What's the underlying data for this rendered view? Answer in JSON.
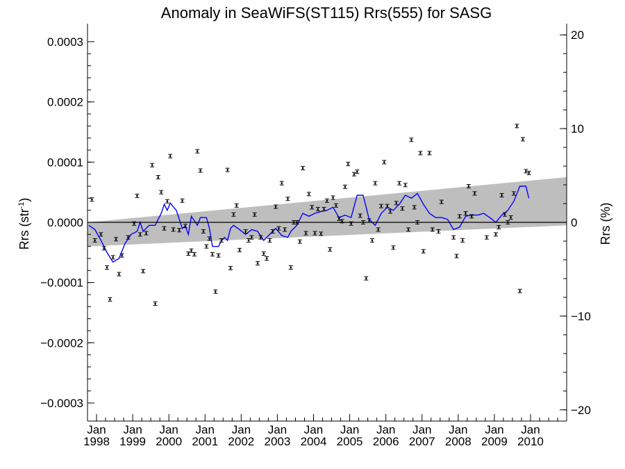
{
  "chart_data": {
    "type": "scatter",
    "title": "Anomaly in SeaWiFS(ST115) Rrs(555) for SASG",
    "ylabel_left": "Rrs (str",
    "ylabel_left_sup": "-1",
    "ylabel_left_close": ")",
    "ylabel_right": "Rrs (%)",
    "x_range": [
      "1997-10-01",
      "2010-12-31"
    ],
    "ylim_left": [
      -0.00033,
      0.00033
    ],
    "ylim_right": [
      -21.2,
      21.2
    ],
    "yticks_left": [
      {
        "v": 0.0003,
        "label": "0.0003"
      },
      {
        "v": 0.0002,
        "label": "0.0002"
      },
      {
        "v": 0.0001,
        "label": "0.0001"
      },
      {
        "v": 0.0,
        "label": "0.0000"
      },
      {
        "v": -0.0001,
        "label": "−0.0001"
      },
      {
        "v": -0.0002,
        "label": "−0.0002"
      },
      {
        "v": -0.0003,
        "label": "−0.0003"
      }
    ],
    "yticks_right": [
      {
        "v": 20,
        "label": "20"
      },
      {
        "v": 10,
        "label": "10"
      },
      {
        "v": 0,
        "label": "0"
      },
      {
        "v": -10,
        "label": "−10"
      },
      {
        "v": -20,
        "label": "−20"
      }
    ],
    "xticks": [
      {
        "year": 1998,
        "month": "Jan",
        "label": "1998"
      },
      {
        "year": 1999,
        "month": "Jan",
        "label": "1999"
      },
      {
        "year": 2000,
        "month": "Jan",
        "label": "2000"
      },
      {
        "year": 2001,
        "month": "Jan",
        "label": "2001"
      },
      {
        "year": 2002,
        "month": "Jan",
        "label": "2002"
      },
      {
        "year": 2003,
        "month": "Jan",
        "label": "2003"
      },
      {
        "year": 2004,
        "month": "Jan",
        "label": "2004"
      },
      {
        "year": 2005,
        "month": "Jan",
        "label": "2005"
      },
      {
        "year": 2006,
        "month": "Jan",
        "label": "2006"
      },
      {
        "year": 2007,
        "month": "Jan",
        "label": "2007"
      },
      {
        "year": 2008,
        "month": "Jan",
        "label": "2008"
      },
      {
        "year": 2009,
        "month": "Jan",
        "label": "2009"
      },
      {
        "year": 2010,
        "month": "Jan",
        "label": "2010"
      }
    ],
    "zero_line": 0.0,
    "trend_band": {
      "lower": [
        {
          "x": "1997-10-01",
          "y": -4e-05
        },
        {
          "x": "2010-12-31",
          "y": -5e-06
        }
      ],
      "upper": [
        {
          "x": "1997-10-01",
          "y": 0.0
        },
        {
          "x": "2010-12-31",
          "y": 7.5e-05
        }
      ]
    },
    "colors": {
      "points": "#000000",
      "smooth_line": "#0000ff",
      "band": "#bebebe",
      "zero_line": "#000000"
    },
    "points": [
      {
        "x": "1997-11",
        "y": 3.8e-05
      },
      {
        "x": "1997-12",
        "y": -3e-05
      },
      {
        "x": "1998-02",
        "y": -2e-05
      },
      {
        "x": "1998-03",
        "y": -4.3e-05
      },
      {
        "x": "1998-04",
        "y": -7.5e-05
      },
      {
        "x": "1998-05",
        "y": -0.000128
      },
      {
        "x": "1998-06",
        "y": -5.8e-05
      },
      {
        "x": "1998-07",
        "y": -2.8e-05
      },
      {
        "x": "1998-08",
        "y": -8.6e-05
      },
      {
        "x": "1998-09",
        "y": -5.5e-05
      },
      {
        "x": "1998-11",
        "y": -2.5e-05
      },
      {
        "x": "1999-01",
        "y": -2e-06
      },
      {
        "x": "1999-02",
        "y": 4.4e-05
      },
      {
        "x": "1999-03",
        "y": -2e-05
      },
      {
        "x": "1999-04",
        "y": -8.1e-05
      },
      {
        "x": "1999-05",
        "y": -1.8e-05
      },
      {
        "x": "1999-07",
        "y": 9.5e-05
      },
      {
        "x": "1999-08",
        "y": -0.000135
      },
      {
        "x": "1999-09",
        "y": 7.5e-05
      },
      {
        "x": "1999-10",
        "y": 5e-05
      },
      {
        "x": "1999-11",
        "y": -1e-05
      },
      {
        "x": "1999-12",
        "y": 3.5e-05
      },
      {
        "x": "2000-01",
        "y": 0.00011
      },
      {
        "x": "2000-02",
        "y": -1.2e-05
      },
      {
        "x": "2000-04",
        "y": -1.3e-05
      },
      {
        "x": "2000-05",
        "y": 3.6e-05
      },
      {
        "x": "2000-06",
        "y": -6e-06
      },
      {
        "x": "2000-07",
        "y": -5.2e-05
      },
      {
        "x": "2000-08",
        "y": -4.7e-05
      },
      {
        "x": "2000-09",
        "y": -5.3e-05
      },
      {
        "x": "2000-10",
        "y": 0.000118
      },
      {
        "x": "2000-11",
        "y": 8.6e-05
      },
      {
        "x": "2000-12",
        "y": -1.5e-05
      },
      {
        "x": "2001-01",
        "y": -4e-05
      },
      {
        "x": "2001-02",
        "y": -2.7e-05
      },
      {
        "x": "2001-03",
        "y": -5.3e-05
      },
      {
        "x": "2001-04",
        "y": -0.000115
      },
      {
        "x": "2001-05",
        "y": -5.5e-05
      },
      {
        "x": "2001-06",
        "y": -3e-05
      },
      {
        "x": "2001-08",
        "y": 8.7e-05
      },
      {
        "x": "2001-09",
        "y": -7.6e-05
      },
      {
        "x": "2001-10",
        "y": 1.3e-05
      },
      {
        "x": "2001-11",
        "y": 2.8e-05
      },
      {
        "x": "2001-12",
        "y": -4.6e-05
      },
      {
        "x": "2002-02",
        "y": -1.5e-05
      },
      {
        "x": "2002-03",
        "y": -3e-05
      },
      {
        "x": "2002-04",
        "y": -2.5e-05
      },
      {
        "x": "2002-05",
        "y": 1.3e-05
      },
      {
        "x": "2002-06",
        "y": -6.8e-05
      },
      {
        "x": "2002-07",
        "y": -2.5e-05
      },
      {
        "x": "2002-08",
        "y": -5.2e-05
      },
      {
        "x": "2002-09",
        "y": -6e-05
      },
      {
        "x": "2002-10",
        "y": -3e-05
      },
      {
        "x": "2002-11",
        "y": -1.5e-05
      },
      {
        "x": "2002-12",
        "y": 2.6e-05
      },
      {
        "x": "2003-01",
        "y": -1e-05
      },
      {
        "x": "2003-02",
        "y": 6.5e-05
      },
      {
        "x": "2003-03",
        "y": -1.2e-05
      },
      {
        "x": "2003-04",
        "y": 3.9e-05
      },
      {
        "x": "2003-05",
        "y": -7.5e-05
      },
      {
        "x": "2003-06",
        "y": 0.0
      },
      {
        "x": "2003-07",
        "y": 0.0
      },
      {
        "x": "2003-08",
        "y": -3.2e-05
      },
      {
        "x": "2003-09",
        "y": 9e-05
      },
      {
        "x": "2003-10",
        "y": -1.8e-05
      },
      {
        "x": "2003-11",
        "y": 4.7e-05
      },
      {
        "x": "2003-12",
        "y": 2.5e-05
      },
      {
        "x": "2004-01",
        "y": -1.8e-05
      },
      {
        "x": "2004-02",
        "y": 2.2e-05
      },
      {
        "x": "2004-03",
        "y": -1.9e-05
      },
      {
        "x": "2004-04",
        "y": 2.2e-05
      },
      {
        "x": "2004-05",
        "y": 3.6e-05
      },
      {
        "x": "2004-06",
        "y": -4.5e-05
      },
      {
        "x": "2004-07",
        "y": 4.1e-05
      },
      {
        "x": "2004-08",
        "y": 2.8e-05
      },
      {
        "x": "2004-09",
        "y": 6e-06
      },
      {
        "x": "2004-10",
        "y": 2e-06
      },
      {
        "x": "2004-11",
        "y": 5.9e-05
      },
      {
        "x": "2004-12",
        "y": 9.7e-05
      },
      {
        "x": "2005-01",
        "y": -2e-06
      },
      {
        "x": "2005-02",
        "y": 8e-05
      },
      {
        "x": "2005-03",
        "y": 8.4e-05
      },
      {
        "x": "2005-04",
        "y": 1.1e-05
      },
      {
        "x": "2005-05",
        "y": 0.0
      },
      {
        "x": "2005-06",
        "y": -9.3e-05
      },
      {
        "x": "2005-07",
        "y": 3e-06
      },
      {
        "x": "2005-08",
        "y": -3e-05
      },
      {
        "x": "2005-09",
        "y": 6.5e-05
      },
      {
        "x": "2005-10",
        "y": -1.2e-05
      },
      {
        "x": "2005-11",
        "y": 2.7e-05
      },
      {
        "x": "2005-12",
        "y": 0.0001
      },
      {
        "x": "2006-01",
        "y": 2.7e-05
      },
      {
        "x": "2006-02",
        "y": 1.8e-05
      },
      {
        "x": "2006-03",
        "y": -4.2e-05
      },
      {
        "x": "2006-04",
        "y": 3.2e-05
      },
      {
        "x": "2006-05",
        "y": 6.5e-05
      },
      {
        "x": "2006-06",
        "y": 2.3e-05
      },
      {
        "x": "2006-07",
        "y": 6.2e-05
      },
      {
        "x": "2006-08",
        "y": -1.2e-05
      },
      {
        "x": "2006-09",
        "y": 0.000137
      },
      {
        "x": "2006-10",
        "y": 2.5e-05
      },
      {
        "x": "2006-11",
        "y": 0.0
      },
      {
        "x": "2006-12",
        "y": 0.000115
      },
      {
        "x": "2007-01",
        "y": -4.8e-05
      },
      {
        "x": "2007-03",
        "y": 0.000115
      },
      {
        "x": "2007-04",
        "y": -1.2e-05
      },
      {
        "x": "2007-06",
        "y": -1.5e-05
      },
      {
        "x": "2007-07",
        "y": 3.4e-05
      },
      {
        "x": "2007-11",
        "y": -2.5e-05
      },
      {
        "x": "2007-12",
        "y": -5.6e-05
      },
      {
        "x": "2008-01",
        "y": 1e-05
      },
      {
        "x": "2008-02",
        "y": -3e-05
      },
      {
        "x": "2008-03",
        "y": 1.5e-05
      },
      {
        "x": "2008-04",
        "y": 6e-05
      },
      {
        "x": "2008-05",
        "y": 1e-05
      },
      {
        "x": "2008-06",
        "y": 4.8e-05
      },
      {
        "x": "2008-10",
        "y": -2.5e-05
      },
      {
        "x": "2009-01",
        "y": -2e-05
      },
      {
        "x": "2009-02",
        "y": -8e-06
      },
      {
        "x": "2009-03",
        "y": 4.5e-05
      },
      {
        "x": "2009-04",
        "y": 1.3e-05
      },
      {
        "x": "2009-05",
        "y": 0.0
      },
      {
        "x": "2009-06",
        "y": 8e-06
      },
      {
        "x": "2009-07",
        "y": 4.8e-05
      },
      {
        "x": "2009-08",
        "y": 0.00016
      },
      {
        "x": "2009-09",
        "y": -0.000114
      },
      {
        "x": "2009-10",
        "y": 0.000138
      },
      {
        "x": "2009-11",
        "y": 8.5e-05
      },
      {
        "x": "2009-12",
        "y": 8.2e-05
      }
    ],
    "smooth_line": [
      {
        "x": "1997-10",
        "y": -5e-06
      },
      {
        "x": "1997-12",
        "y": -1.2e-05
      },
      {
        "x": "1998-02",
        "y": -3e-05
      },
      {
        "x": "1998-04",
        "y": -5e-05
      },
      {
        "x": "1998-06",
        "y": -6.6e-05
      },
      {
        "x": "1998-08",
        "y": -6e-05
      },
      {
        "x": "1998-10",
        "y": -3.5e-05
      },
      {
        "x": "1998-12",
        "y": -2e-05
      },
      {
        "x": "1999-02",
        "y": -1.5e-05
      },
      {
        "x": "1999-03",
        "y": 0.0
      },
      {
        "x": "1999-04",
        "y": -1.5e-05
      },
      {
        "x": "1999-06",
        "y": -5e-06
      },
      {
        "x": "1999-08",
        "y": -5e-06
      },
      {
        "x": "1999-10",
        "y": 1.5e-05
      },
      {
        "x": "1999-11",
        "y": 3e-05
      },
      {
        "x": "1999-12",
        "y": 2e-05
      },
      {
        "x": "2000-01",
        "y": 3.2e-05
      },
      {
        "x": "2000-03",
        "y": 2e-05
      },
      {
        "x": "2000-05",
        "y": -1e-05
      },
      {
        "x": "2000-06",
        "y": -6e-06
      },
      {
        "x": "2000-07",
        "y": -2e-05
      },
      {
        "x": "2000-08",
        "y": 1e-05
      },
      {
        "x": "2000-10",
        "y": -5e-06
      },
      {
        "x": "2000-11",
        "y": 8e-06
      },
      {
        "x": "2001-01",
        "y": 8e-06
      },
      {
        "x": "2001-02",
        "y": -1e-05
      },
      {
        "x": "2001-03",
        "y": -4e-05
      },
      {
        "x": "2001-05",
        "y": -4e-05
      },
      {
        "x": "2001-06",
        "y": -3e-05
      },
      {
        "x": "2001-07",
        "y": -2.5e-05
      },
      {
        "x": "2001-08",
        "y": -3e-05
      },
      {
        "x": "2001-09",
        "y": -1e-05
      },
      {
        "x": "2001-10",
        "y": -5e-06
      },
      {
        "x": "2001-12",
        "y": -1.2e-05
      },
      {
        "x": "2002-02",
        "y": -2e-05
      },
      {
        "x": "2002-04",
        "y": -1.2e-05
      },
      {
        "x": "2002-06",
        "y": -1.5e-05
      },
      {
        "x": "2002-08",
        "y": -3e-05
      },
      {
        "x": "2002-10",
        "y": -2e-05
      },
      {
        "x": "2002-12",
        "y": -1e-05
      },
      {
        "x": "2003-02",
        "y": -2.2e-05
      },
      {
        "x": "2003-04",
        "y": -2.5e-05
      },
      {
        "x": "2003-05",
        "y": -1.5e-05
      },
      {
        "x": "2003-07",
        "y": -5e-06
      },
      {
        "x": "2003-09",
        "y": 1.5e-05
      },
      {
        "x": "2003-11",
        "y": 1e-05
      },
      {
        "x": "2004-01",
        "y": 1.5e-05
      },
      {
        "x": "2004-03",
        "y": 1.8e-05
      },
      {
        "x": "2004-05",
        "y": 2e-05
      },
      {
        "x": "2004-07",
        "y": 2.5e-05
      },
      {
        "x": "2004-09",
        "y": 8e-06
      },
      {
        "x": "2004-11",
        "y": 1.2e-05
      },
      {
        "x": "2005-01",
        "y": 8e-06
      },
      {
        "x": "2005-03",
        "y": 4.5e-05
      },
      {
        "x": "2005-05",
        "y": 4.5e-05
      },
      {
        "x": "2005-07",
        "y": 5e-06
      },
      {
        "x": "2005-09",
        "y": -5e-06
      },
      {
        "x": "2005-11",
        "y": 1.5e-05
      },
      {
        "x": "2006-01",
        "y": 2.5e-05
      },
      {
        "x": "2006-03",
        "y": 2e-05
      },
      {
        "x": "2006-05",
        "y": 3e-05
      },
      {
        "x": "2006-07",
        "y": 4.5e-05
      },
      {
        "x": "2006-09",
        "y": 4e-05
      },
      {
        "x": "2006-11",
        "y": 4.8e-05
      },
      {
        "x": "2007-01",
        "y": 3e-05
      },
      {
        "x": "2007-03",
        "y": 1.5e-05
      },
      {
        "x": "2007-05",
        "y": 8e-06
      },
      {
        "x": "2007-07",
        "y": 8e-06
      },
      {
        "x": "2007-09",
        "y": 5e-06
      },
      {
        "x": "2007-11",
        "y": -1.2e-05
      },
      {
        "x": "2008-01",
        "y": -8e-06
      },
      {
        "x": "2008-03",
        "y": 1e-05
      },
      {
        "x": "2008-05",
        "y": 1.2e-05
      },
      {
        "x": "2008-07",
        "y": 1.2e-05
      },
      {
        "x": "2008-09",
        "y": 1.5e-05
      },
      {
        "x": "2008-11",
        "y": 8e-06
      },
      {
        "x": "2009-01",
        "y": 0.0
      },
      {
        "x": "2009-03",
        "y": 1.2e-05
      },
      {
        "x": "2009-05",
        "y": 2e-05
      },
      {
        "x": "2009-07",
        "y": 3.5e-05
      },
      {
        "x": "2009-09",
        "y": 6e-05
      },
      {
        "x": "2009-11",
        "y": 6e-05
      },
      {
        "x": "2009-12",
        "y": 4e-05
      }
    ]
  }
}
